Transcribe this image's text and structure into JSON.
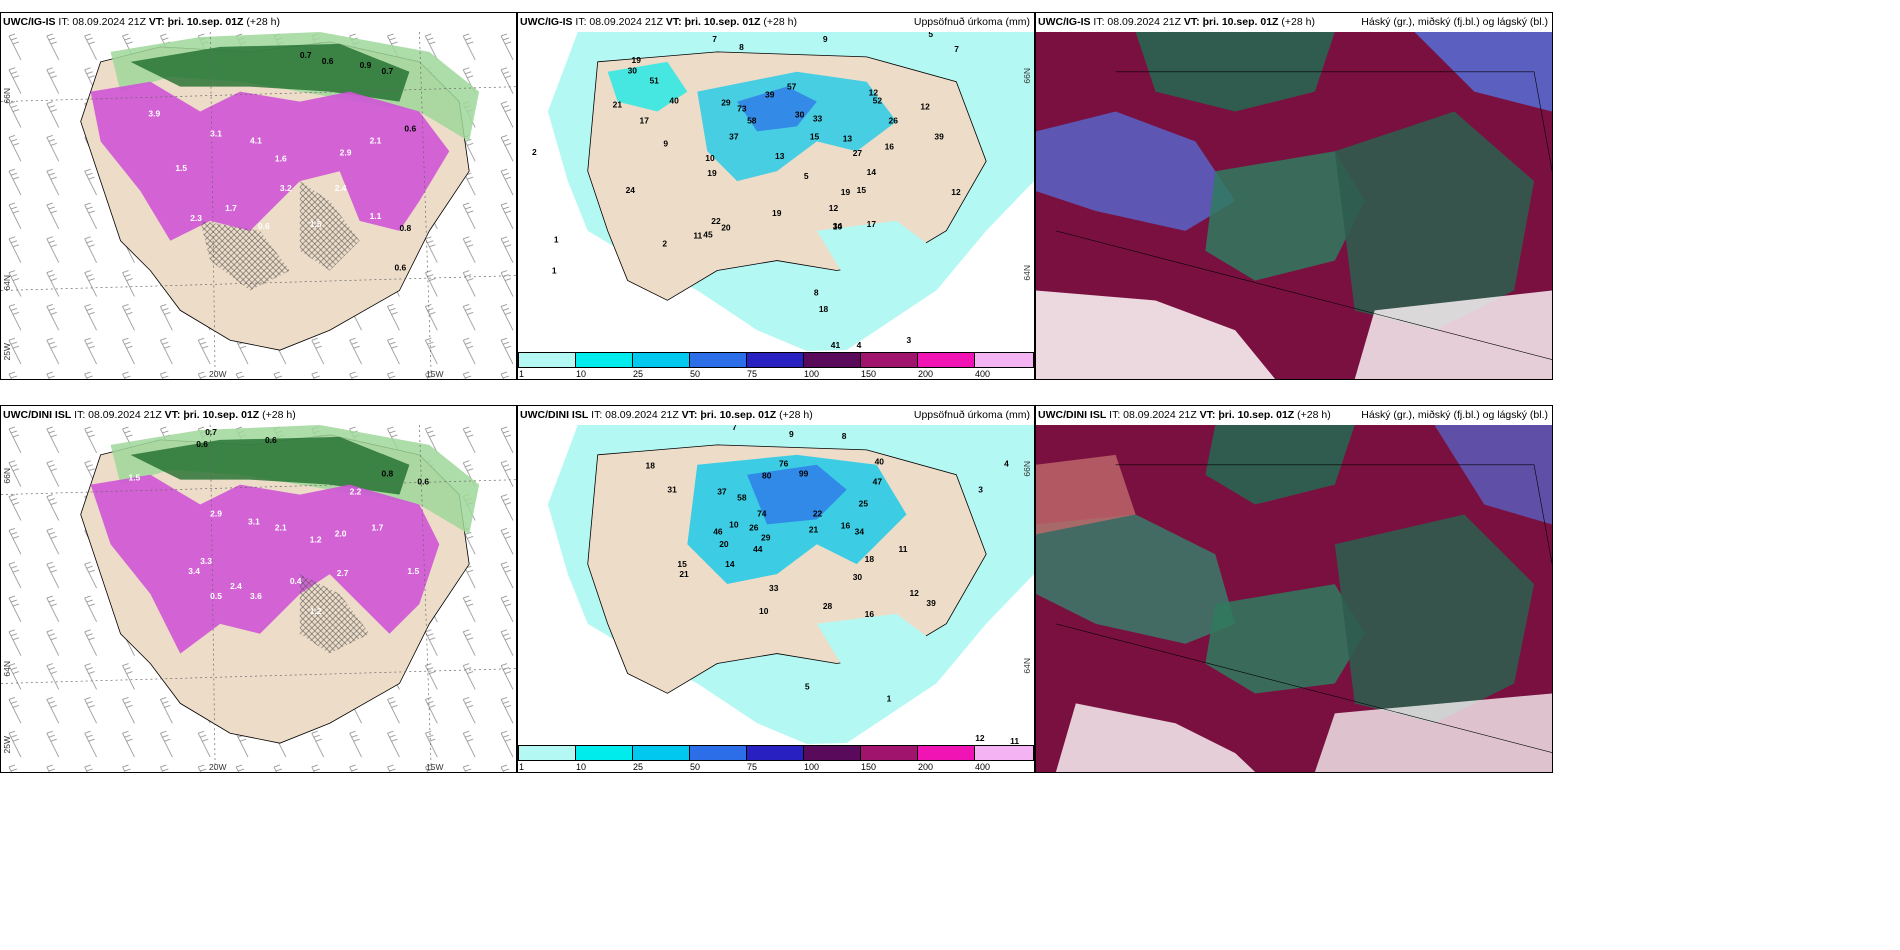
{
  "panels": [
    {
      "model": "UWC/IG-IS",
      "it": "IT: 08.09.2024 21Z",
      "vt": "VT: þri. 10.sep. 01Z",
      "lead": "(+28 h)",
      "right": ""
    },
    {
      "model": "UWC/IG-IS",
      "it": "IT: 08.09.2024 21Z",
      "vt": "VT: þri. 10.sep. 01Z",
      "lead": "(+28 h)",
      "right": "Uppsöfnuð úrkoma (mm)"
    },
    {
      "model": "UWC/IG-IS",
      "it": "IT: 08.09.2024 21Z",
      "vt": "VT: þri. 10.sep. 01Z",
      "lead": "(+28 h)",
      "right": "Háský (gr.), miðský (fj.bl.) og lágský (bl.)"
    },
    {
      "model": "UWC/DINI ISL",
      "it": "IT: 08.09.2024 21Z",
      "vt": "VT: þri. 10.sep. 01Z",
      "lead": "(+28 h)",
      "right": ""
    },
    {
      "model": "UWC/DINI ISL",
      "it": "IT: 08.09.2024 21Z",
      "vt": "VT: þri. 10.sep. 01Z",
      "lead": "(+28 h)",
      "right": "Uppsöfnuð úrkoma (mm)"
    },
    {
      "model": "UWC/DINI ISL",
      "it": "IT: 08.09.2024 21Z",
      "vt": "VT: þri. 10.sep. 01Z",
      "lead": "(+28 h)",
      "right": "Háský (gr.), miðský (fj.bl.) og lágský (bl.)"
    }
  ],
  "axes": {
    "lat66": "66N",
    "lat64": "64N",
    "lon25": "25W",
    "lon20": "20W",
    "lon15": "15W"
  },
  "colorbar": {
    "ticks": [
      "1",
      "10",
      "25",
      "50",
      "75",
      "100",
      "150",
      "200",
      "400"
    ],
    "colors": [
      "#b4f8f4",
      "#00ebeb",
      "#00c8ee",
      "#2c6ee8",
      "#2820c0",
      "#5a0a5a",
      "#a0146e",
      "#f014b4",
      "#f4b4f4"
    ]
  },
  "precip_top": [
    "7",
    "8",
    "9",
    "5",
    "7",
    "19",
    "30",
    "51",
    "40",
    "21",
    "17",
    "29",
    "73",
    "58",
    "39",
    "57",
    "30",
    "12",
    "52",
    "33",
    "26",
    "39",
    "12",
    "9",
    "37",
    "10",
    "19",
    "5",
    "13",
    "15",
    "13",
    "19",
    "27",
    "14",
    "16",
    "12",
    "15",
    "19",
    "22",
    "20",
    "11",
    "45",
    "10",
    "17",
    "24",
    "34",
    "2",
    "8",
    "18",
    "41",
    "4",
    "1",
    "1",
    "3",
    "2",
    "12"
  ],
  "precip_bottom": [
    "7",
    "9",
    "8",
    "18",
    "31",
    "37",
    "58",
    "80",
    "76",
    "99",
    "40",
    "47",
    "74",
    "46",
    "26",
    "29",
    "22",
    "20",
    "25",
    "21",
    "16",
    "14",
    "33",
    "44",
    "21",
    "10",
    "10",
    "15",
    "18",
    "34",
    "30",
    "11",
    "12",
    "16",
    "28",
    "39",
    "1",
    "5",
    "4",
    "3",
    "12",
    "11"
  ],
  "snow_top": [
    "0.7",
    "0.6",
    "0.9",
    "0.7",
    "3.9",
    "3.1",
    "4.1",
    "1.6",
    "2.9",
    "1.5",
    "2.1",
    "0.6",
    "2.3",
    "1.7",
    "3.2",
    "0.6",
    "1.1",
    "0.8",
    "0.6",
    "2.4",
    "1.5"
  ],
  "snow_bottom": [
    "0.7",
    "0.6",
    "0.6",
    "0.8",
    "1.5",
    "2.9",
    "3.1",
    "2.1",
    "2.0",
    "1.2",
    "1.7",
    "3.4",
    "2.4",
    "3.6",
    "0.5",
    "0.4",
    "1.5",
    "2.7",
    "1.2",
    "0.6",
    "3.3",
    "2.2"
  ]
}
